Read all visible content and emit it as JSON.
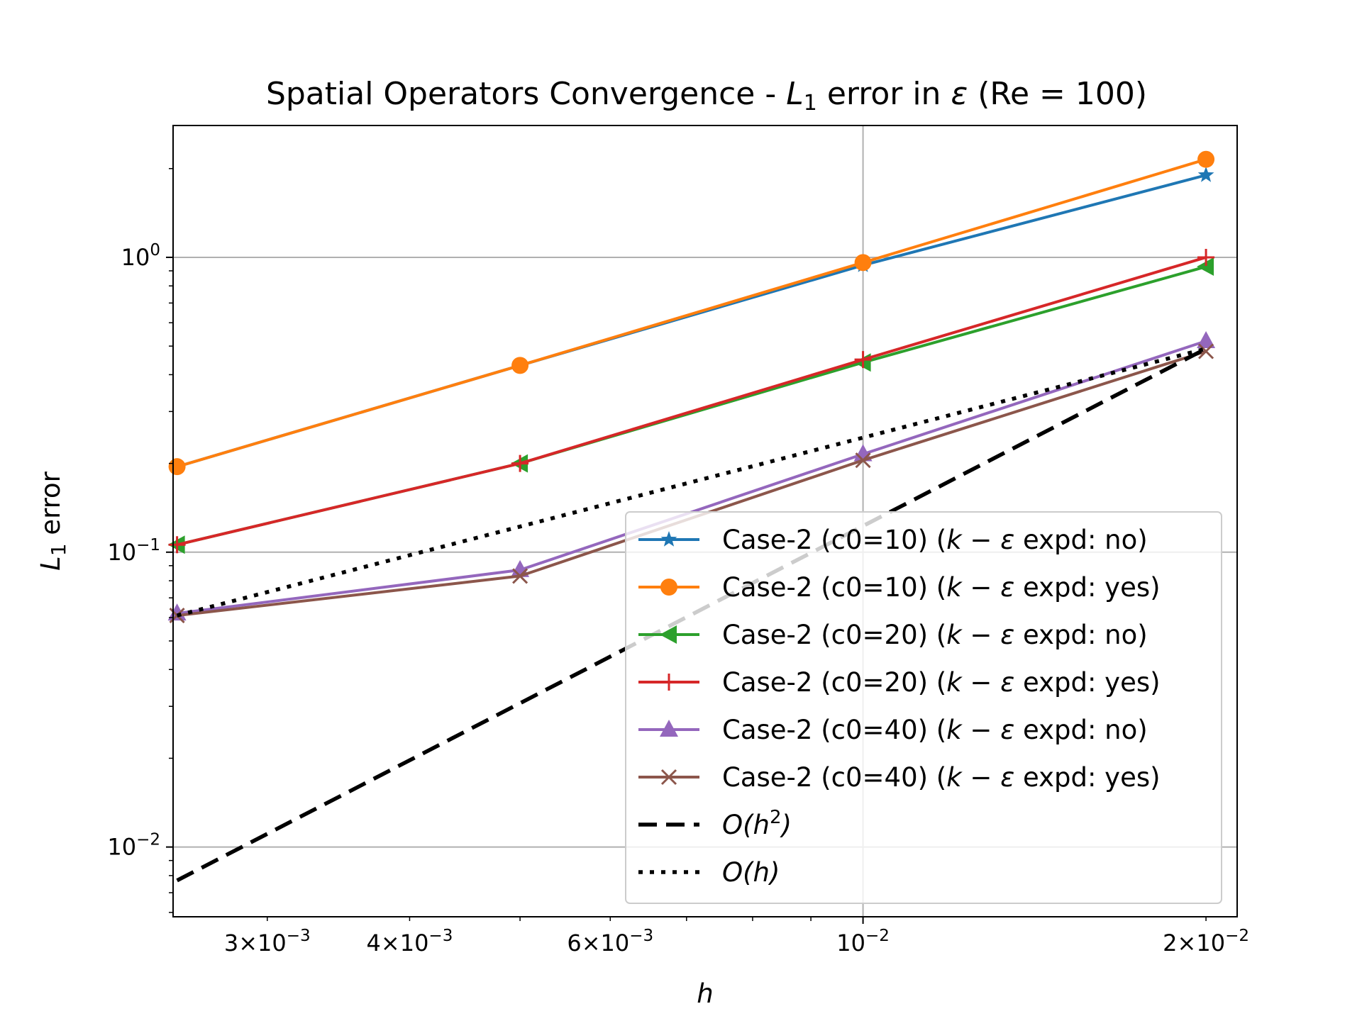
{
  "chart_data": {
    "type": "line",
    "title": {
      "main": "Spatial Operators Convergence - ",
      "metric": "L",
      "metric_sub": "1",
      "mid": " error in ",
      "quantity": "ε",
      "tail": " (Re = 100)"
    },
    "xlabel": "h",
    "ylabel": {
      "main": "L",
      "sub": "1",
      "tail": " error"
    },
    "xscale": "log",
    "yscale": "log",
    "xlim": [
      0.00248,
      0.0213
    ],
    "ylim": [
      0.0058,
      2.8
    ],
    "grid": "major",
    "legend_position": "lower right",
    "x_ticks": [
      {
        "value": 0.003,
        "mant": "3",
        "exp": "−3"
      },
      {
        "value": 0.004,
        "mant": "4",
        "exp": "−3"
      },
      {
        "value": 0.006,
        "mant": "6",
        "exp": "−3"
      },
      {
        "value": 0.01,
        "mant": "",
        "exp": "−2"
      },
      {
        "value": 0.02,
        "mant": "2",
        "exp": "−2"
      }
    ],
    "y_ticks": [
      {
        "value": 0.01,
        "exp": "−2"
      },
      {
        "value": 0.1,
        "exp": "−1"
      },
      {
        "value": 1,
        "exp": "0"
      }
    ],
    "series": [
      {
        "name": "Case-2 (c0=10) (k − ε expd: no)",
        "label_case": "Case-2 (c0=10) (",
        "label_expd": " expd: no)",
        "color": "#1f77b4",
        "marker": "star",
        "style": "solid",
        "x": [
          0.0025,
          0.005,
          0.01,
          0.02
        ],
        "y": [
          0.195,
          0.43,
          0.94,
          1.9
        ]
      },
      {
        "name": "Case-2 (c0=10) (k − ε expd: yes)",
        "label_case": "Case-2 (c0=10) (",
        "label_expd": " expd: yes)",
        "color": "#ff7f0e",
        "marker": "circle",
        "style": "solid",
        "x": [
          0.0025,
          0.005,
          0.01,
          0.02
        ],
        "y": [
          0.195,
          0.43,
          0.96,
          2.15
        ]
      },
      {
        "name": "Case-2 (c0=20) (k − ε expd: no)",
        "label_case": "Case-2 (c0=20) (",
        "label_expd": " expd: no)",
        "color": "#2ca02c",
        "marker": "triangle-left",
        "style": "solid",
        "x": [
          0.0025,
          0.005,
          0.01,
          0.02
        ],
        "y": [
          0.106,
          0.2,
          0.44,
          0.93
        ]
      },
      {
        "name": "Case-2 (c0=20) (k − ε expd: yes)",
        "label_case": "Case-2 (c0=20) (",
        "label_expd": " expd: yes)",
        "color": "#d62728",
        "marker": "plus",
        "style": "solid",
        "x": [
          0.0025,
          0.005,
          0.01,
          0.02
        ],
        "y": [
          0.106,
          0.2,
          0.45,
          1.0
        ]
      },
      {
        "name": "Case-2 (c0=40) (k − ε expd: no)",
        "label_case": "Case-2 (c0=40) (",
        "label_expd": " expd: no)",
        "color": "#9467bd",
        "marker": "triangle-up",
        "style": "solid",
        "x": [
          0.0025,
          0.005,
          0.01,
          0.02
        ],
        "y": [
          0.062,
          0.087,
          0.215,
          0.52
        ]
      },
      {
        "name": "Case-2 (c0=40) (k − ε expd: yes)",
        "label_case": "Case-2 (c0=40) (",
        "label_expd": " expd: yes)",
        "color": "#8c564b",
        "marker": "x",
        "style": "solid",
        "x": [
          0.0025,
          0.005,
          0.01,
          0.02
        ],
        "y": [
          0.061,
          0.083,
          0.205,
          0.48
        ]
      },
      {
        "name": "O(h²)",
        "label_pre": "O(h",
        "label_sup": "2",
        "label_post": ")",
        "color": "#000000",
        "marker": "none",
        "style": "dashed",
        "x": [
          0.0025,
          0.02
        ],
        "y": [
          0.0077,
          0.49
        ]
      },
      {
        "name": "O(h)",
        "label_pre": "O(h",
        "label_sup": "",
        "label_post": ")",
        "color": "#000000",
        "marker": "none",
        "style": "dotted",
        "x": [
          0.0025,
          0.02
        ],
        "y": [
          0.061,
          0.49
        ]
      }
    ]
  }
}
